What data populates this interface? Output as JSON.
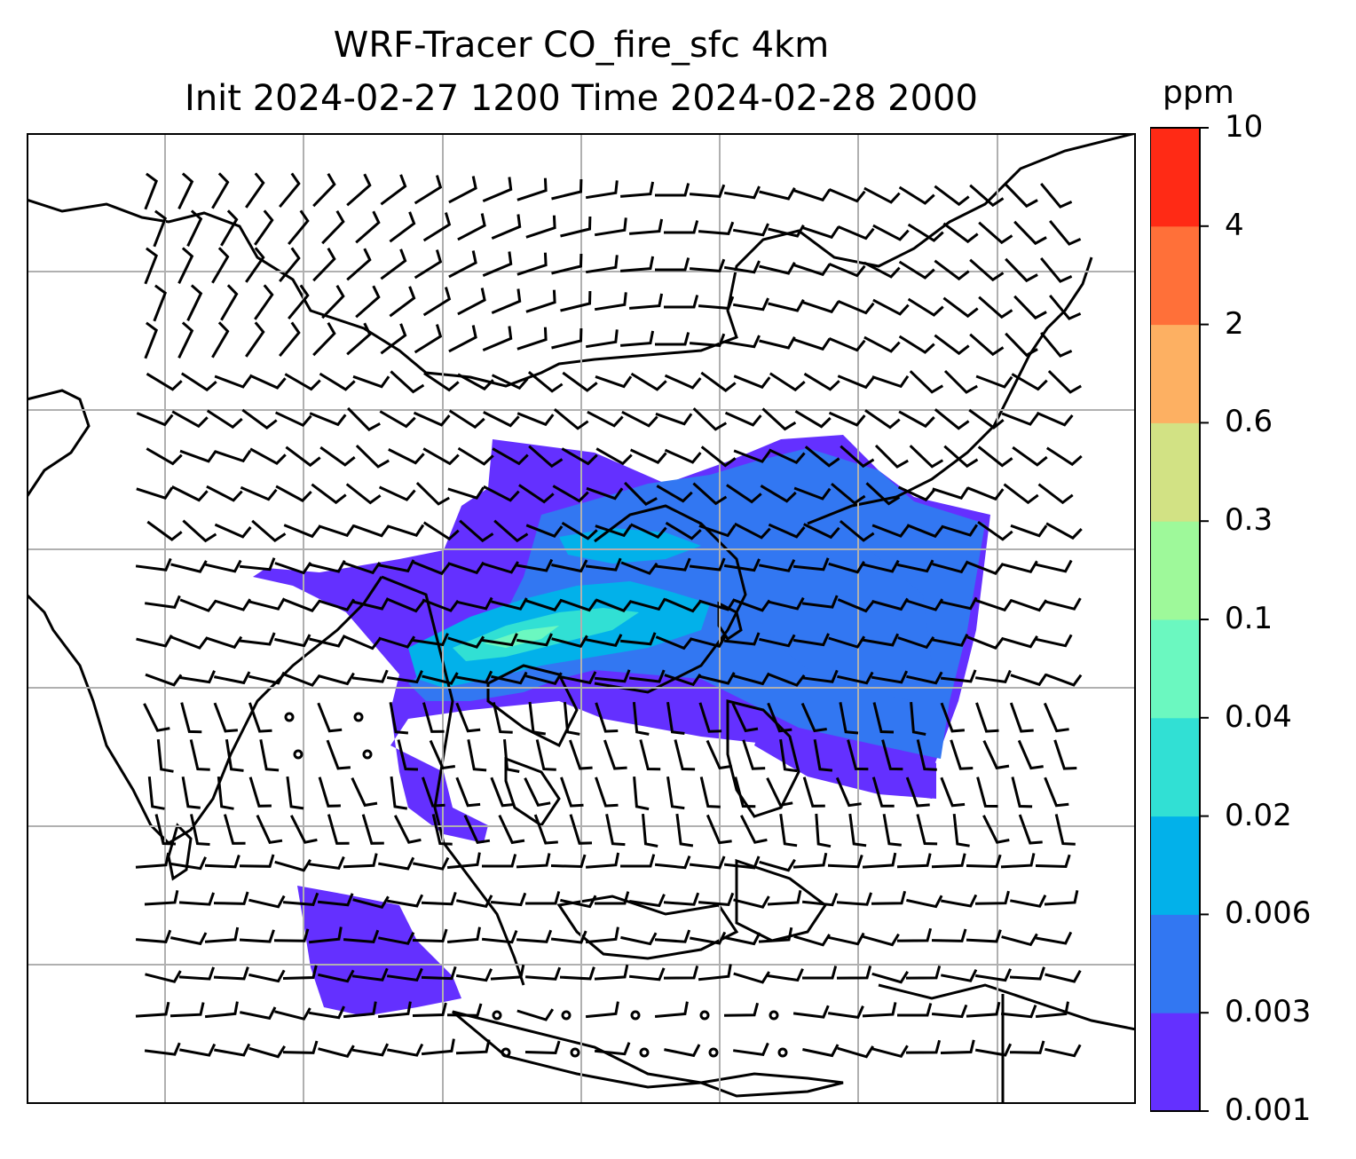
{
  "title_line1": "WRF-Tracer CO_fire_sfc 4km",
  "title_line2": "Init 2024-02-27 1200 Time 2024-02-28 2000",
  "colorbar": {
    "unit": "ppm",
    "levels": [
      "0.001",
      "0.003",
      "0.006",
      "0.02",
      "0.04",
      "0.1",
      "0.3",
      "0.6",
      "2",
      "4",
      "10"
    ],
    "colors": [
      "#6430ff",
      "#3277f2",
      "#02b1ea",
      "#31e0d4",
      "#6bf8c0",
      "#9ef99a",
      "#d2e284",
      "#fdb062",
      "#ff7039",
      "#ff2a15"
    ]
  },
  "map": {
    "field": "CO_fire_sfc",
    "plume_color_low": "#6430ff",
    "plume_color_mid": "#3277f2",
    "plume_color_high": "#02b1ea",
    "plume_color_peak": "#6bf8c0",
    "gridline_color": "#b0b0b0",
    "wind_barbs": true
  }
}
